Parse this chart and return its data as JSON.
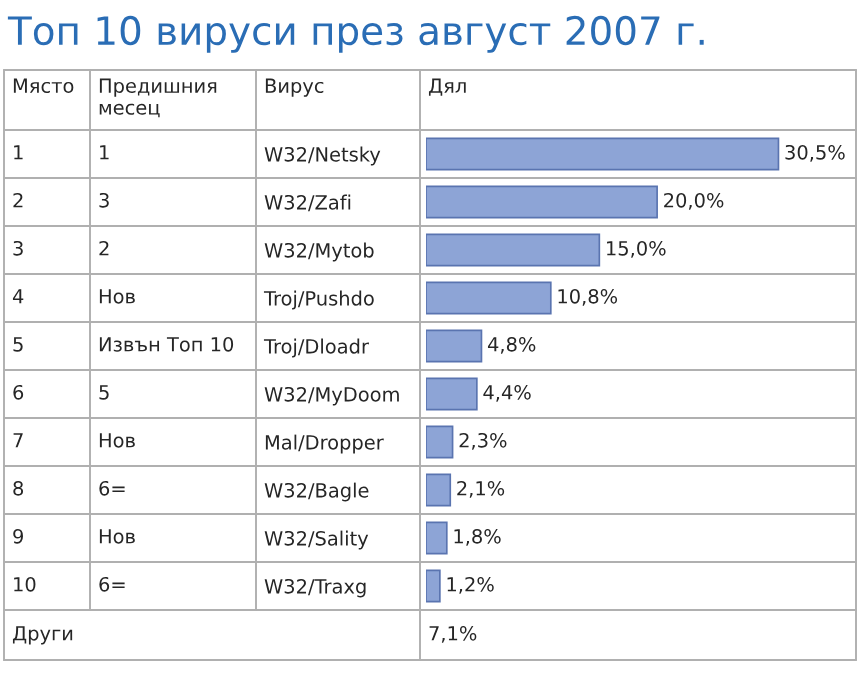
{
  "chart_data": {
    "type": "bar",
    "orientation": "horizontal",
    "title": "Топ 10 вируси през август 2007 г.",
    "categories": [
      "W32/Netsky",
      "W32/Zafi",
      "W32/Mytob",
      "Troj/Pushdo",
      "Troj/Dloadr",
      "W32/MyDoom",
      "Mal/Dropper",
      "W32/Bagle",
      "W32/Sality",
      "W32/Traxg"
    ],
    "values": [
      30.5,
      20.0,
      15.0,
      10.8,
      4.8,
      4.4,
      2.3,
      2.1,
      1.8,
      1.2
    ],
    "value_labels": [
      "30,5%",
      "20,0%",
      "15,0%",
      "10,8%",
      "4,8%",
      "4,4%",
      "2,3%",
      "2,1%",
      "1,8%",
      "1,2%"
    ],
    "color": "#8da4d6",
    "annotations": [
      "Място",
      "Предишния\nмесец",
      "Вирус",
      "Дял",
      "1",
      "1",
      "2",
      "3",
      "3",
      "2",
      "4",
      "Нов",
      "5",
      "Извън Топ 10",
      "6",
      "5",
      "7",
      "Нов",
      "8",
      "6=",
      "9",
      "Нов",
      "10",
      "6=",
      "Други",
      "7,1%"
    ]
  }
}
